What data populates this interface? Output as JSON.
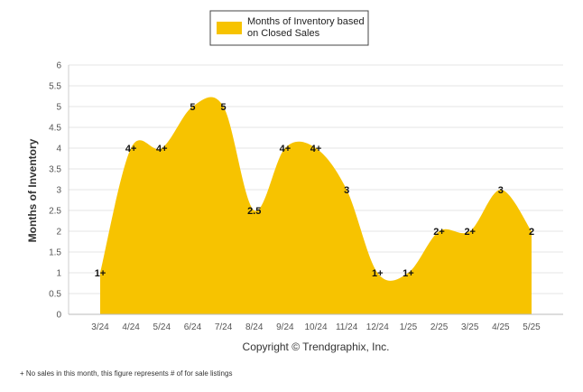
{
  "chart_data": {
    "type": "area",
    "categories": [
      "3/24",
      "4/24",
      "5/24",
      "6/24",
      "7/24",
      "8/24",
      "9/24",
      "10/24",
      "11/24",
      "12/24",
      "1/25",
      "2/25",
      "3/25",
      "4/25",
      "5/25"
    ],
    "series": [
      {
        "name": "Months of Inventory based on Closed Sales",
        "values": [
          1,
          4,
          4,
          5,
          5,
          2.5,
          4,
          4,
          3,
          1,
          1,
          2,
          2,
          3,
          2
        ],
        "labels": [
          "1+",
          "4+",
          "4+",
          "5",
          "5",
          "2.5",
          "4+",
          "4+",
          "3",
          "1+",
          "1+",
          "2+",
          "2+",
          "3",
          "2"
        ]
      }
    ],
    "legend_lines": [
      "Months of Inventory based",
      "on Closed Sales"
    ],
    "xlabel": "",
    "ylabel": "Months of Inventory",
    "ylim": [
      0,
      6
    ],
    "yticks": [
      "0",
      "0.5",
      "1",
      "1.5",
      "2",
      "2.5",
      "3",
      "3.5",
      "4",
      "4.5",
      "5",
      "5.5",
      "6"
    ],
    "grid": true,
    "legend_position": "top"
  },
  "colors": {
    "fill": "#F7C300",
    "grid": "#E6E6E6"
  },
  "copyright": "Copyright © Trendgraphix, Inc.",
  "footnote": "+ No sales in this month, this figure represents # of for sale listings"
}
